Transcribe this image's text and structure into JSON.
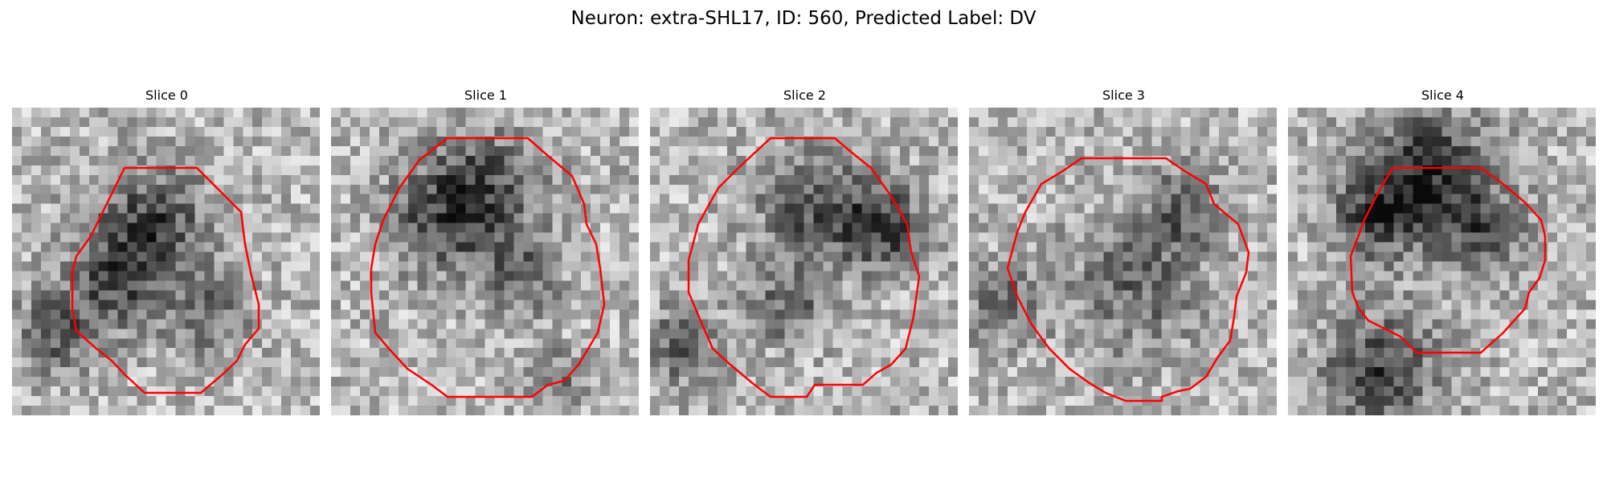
{
  "figure": {
    "title": "Neuron: extra-SHL17, ID: 560, Predicted Label: DV",
    "colors": {
      "contour": "#ff0000",
      "background": "#ffffff"
    },
    "slices": [
      {
        "title": "Slice 0"
      },
      {
        "title": "Slice 1"
      },
      {
        "title": "Slice 2"
      },
      {
        "title": "Slice 3"
      },
      {
        "title": "Slice 4"
      }
    ]
  }
}
